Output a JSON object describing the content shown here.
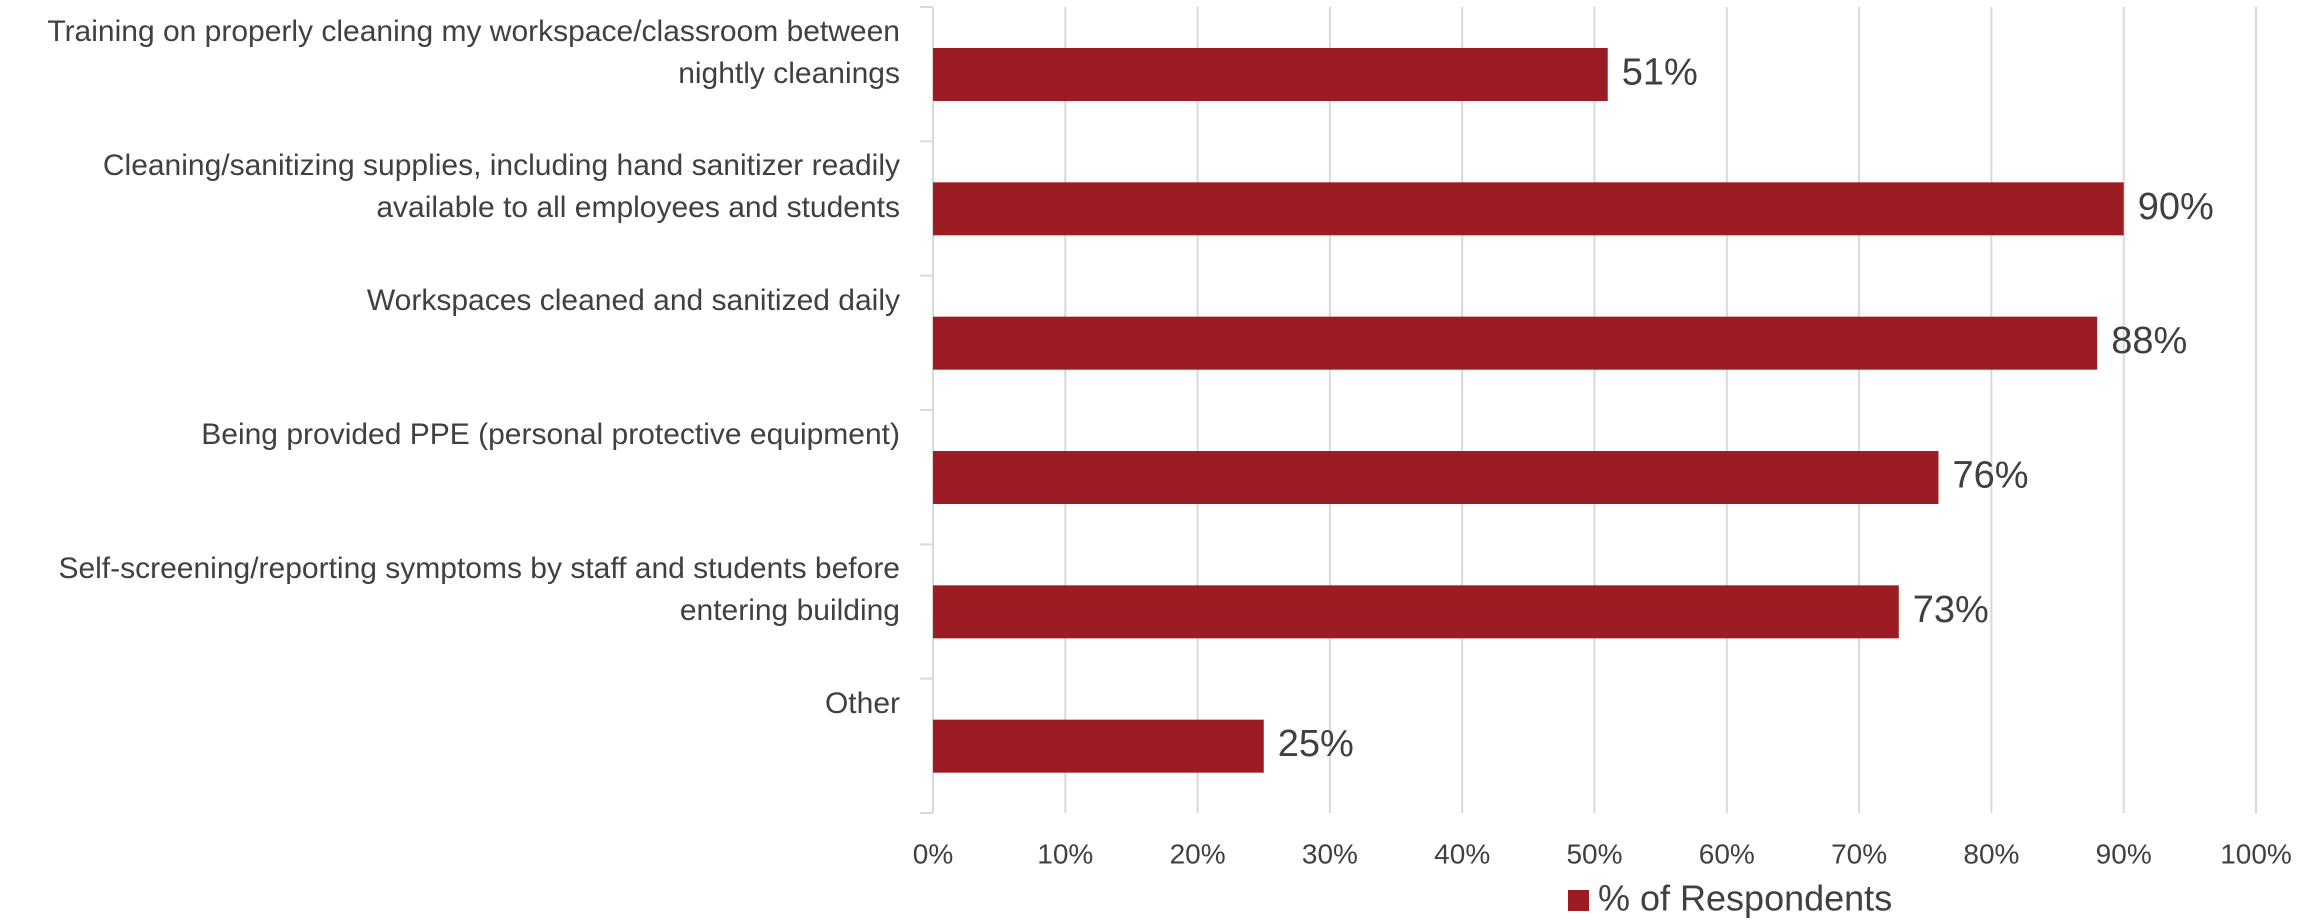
{
  "chart_data": {
    "type": "bar",
    "orientation": "horizontal",
    "categories": [
      "Training on properly cleaning my workspace/classroom between nightly cleanings",
      "Cleaning/sanitizing supplies, including hand sanitizer readily available to all employees and students",
      "Workspaces cleaned and sanitized daily",
      "Being provided PPE (personal protective equipment)",
      "Self-screening/reporting symptoms by staff and students before entering building",
      "Other"
    ],
    "series": [
      {
        "name": "% of Respondents",
        "color": "#9b1c23",
        "values": [
          51,
          90,
          88,
          76,
          73,
          25
        ],
        "value_labels": [
          "51%",
          "90%",
          "88%",
          "76%",
          "73%",
          "25%"
        ]
      }
    ],
    "xlim": [
      0,
      100
    ],
    "xticks": [
      {
        "value": 0,
        "label": "0%"
      },
      {
        "value": 10,
        "label": "10%"
      },
      {
        "value": 20,
        "label": "20%"
      },
      {
        "value": 30,
        "label": "30%"
      },
      {
        "value": 40,
        "label": "40%"
      },
      {
        "value": 50,
        "label": "50%"
      },
      {
        "value": 60,
        "label": "60%"
      },
      {
        "value": 70,
        "label": "70%"
      },
      {
        "value": 80,
        "label": "80%"
      },
      {
        "value": 90,
        "label": "90%"
      },
      {
        "value": 100,
        "label": "100%"
      }
    ],
    "grid": true,
    "legend": "bottom"
  }
}
